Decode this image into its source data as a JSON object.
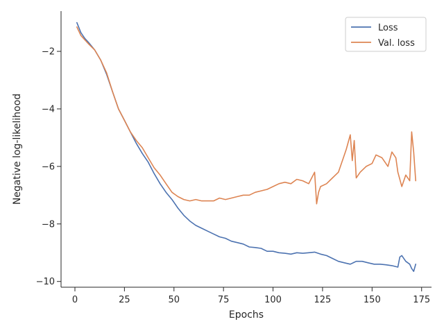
{
  "chart_data": {
    "type": "line",
    "xlabel": "Epochs",
    "ylabel": "Negative log-likelihood",
    "xlim": [
      -7,
      180
    ],
    "ylim": [
      -10.2,
      -0.6
    ],
    "xticks": [
      0,
      25,
      50,
      75,
      100,
      125,
      150,
      175
    ],
    "yticks": [
      -10,
      -8,
      -6,
      -4,
      -2
    ],
    "ytick_labels": [
      "−10",
      "−8",
      "−6",
      "−4",
      "−2"
    ],
    "grid": false,
    "legend_position": "top-right",
    "series": [
      {
        "name": "Loss",
        "color": "#4c72b0",
        "x": [
          1,
          3,
          5,
          7,
          10,
          13,
          16,
          19,
          22,
          25,
          28,
          31,
          34,
          37,
          40,
          43,
          46,
          49,
          52,
          55,
          58,
          61,
          64,
          67,
          70,
          73,
          76,
          79,
          82,
          85,
          88,
          91,
          94,
          97,
          100,
          103,
          106,
          109,
          112,
          115,
          118,
          121,
          124,
          127,
          130,
          133,
          136,
          139,
          142,
          145,
          148,
          151,
          154,
          157,
          160,
          163,
          164,
          165,
          167,
          169,
          170,
          171,
          172
        ],
        "y": [
          -1.0,
          -1.35,
          -1.55,
          -1.7,
          -1.95,
          -2.3,
          -2.8,
          -3.4,
          -4.0,
          -4.4,
          -4.8,
          -5.2,
          -5.55,
          -5.85,
          -6.25,
          -6.6,
          -6.9,
          -7.15,
          -7.45,
          -7.7,
          -7.9,
          -8.05,
          -8.15,
          -8.25,
          -8.35,
          -8.45,
          -8.5,
          -8.6,
          -8.65,
          -8.7,
          -8.8,
          -8.82,
          -8.85,
          -8.95,
          -8.95,
          -9.0,
          -9.02,
          -9.05,
          -9.0,
          -9.02,
          -9.0,
          -8.98,
          -9.05,
          -9.1,
          -9.2,
          -9.3,
          -9.35,
          -9.4,
          -9.3,
          -9.3,
          -9.35,
          -9.4,
          -9.4,
          -9.42,
          -9.45,
          -9.5,
          -9.15,
          -9.1,
          -9.3,
          -9.4,
          -9.55,
          -9.65,
          -9.4
        ]
      },
      {
        "name": "Val. loss",
        "color": "#dd8452",
        "x": [
          1,
          3,
          5,
          7,
          10,
          13,
          16,
          19,
          22,
          25,
          28,
          31,
          34,
          37,
          40,
          43,
          46,
          49,
          52,
          55,
          58,
          61,
          64,
          67,
          70,
          73,
          76,
          79,
          82,
          85,
          88,
          91,
          94,
          97,
          100,
          103,
          106,
          109,
          112,
          115,
          118,
          121,
          122,
          123,
          124,
          127,
          130,
          133,
          136,
          137,
          139,
          140,
          141,
          142,
          144,
          147,
          150,
          152,
          155,
          158,
          160,
          162,
          163,
          165,
          167,
          169,
          170,
          171,
          172
        ],
        "y": [
          -1.15,
          -1.45,
          -1.6,
          -1.75,
          -1.95,
          -2.3,
          -2.75,
          -3.4,
          -4.0,
          -4.4,
          -4.8,
          -5.1,
          -5.35,
          -5.7,
          -6.05,
          -6.3,
          -6.6,
          -6.9,
          -7.05,
          -7.15,
          -7.2,
          -7.15,
          -7.2,
          -7.2,
          -7.2,
          -7.1,
          -7.15,
          -7.1,
          -7.05,
          -7.0,
          -7.0,
          -6.9,
          -6.85,
          -6.8,
          -6.7,
          -6.6,
          -6.55,
          -6.6,
          -6.45,
          -6.5,
          -6.6,
          -6.2,
          -7.3,
          -6.9,
          -6.7,
          -6.6,
          -6.4,
          -6.2,
          -5.6,
          -5.4,
          -4.9,
          -5.8,
          -5.1,
          -6.4,
          -6.2,
          -6.0,
          -5.9,
          -5.6,
          -5.7,
          -6.0,
          -5.5,
          -5.7,
          -6.2,
          -6.7,
          -6.3,
          -6.5,
          -4.8,
          -5.5,
          -6.5
        ]
      }
    ]
  }
}
